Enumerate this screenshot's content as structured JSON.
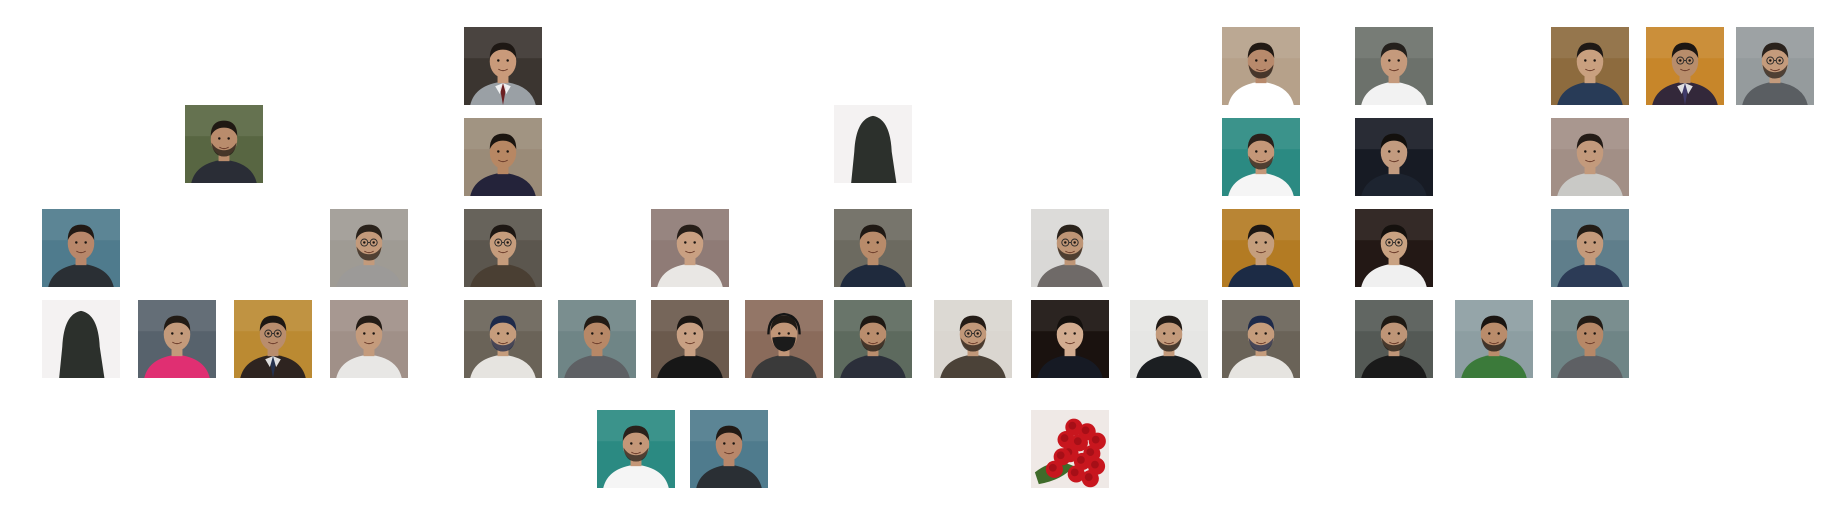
{
  "tiles": [
    {
      "id": "t01",
      "kind": "portrait",
      "bg": "#3b3530",
      "skin": "#c99a7a",
      "hair": "#1e1814",
      "shirt": "#9aa0a5",
      "tie": "#6b1f22",
      "glasses": false,
      "beard": false
    },
    {
      "id": "t02",
      "kind": "portrait",
      "bg": "#b6a18a",
      "skin": "#b88a6c",
      "hair": "#221a14",
      "shirt": "#ffffff",
      "tie": "",
      "glasses": false,
      "beard": true
    },
    {
      "id": "t03",
      "kind": "portrait",
      "bg": "#6c716b",
      "skin": "#c59a7c",
      "hair": "#24201c",
      "shirt": "#f2f2f2",
      "tie": "",
      "glasses": false,
      "beard": false
    },
    {
      "id": "t04",
      "kind": "portrait",
      "bg": "#8d6b3e",
      "skin": "#c9a07f",
      "hair": "#1f1915",
      "shirt": "#283b57",
      "tie": "",
      "glasses": false,
      "beard": false
    },
    {
      "id": "t05",
      "kind": "portrait",
      "bg": "#c7862a",
      "skin": "#b88d6b",
      "hair": "#1d1713",
      "shirt": "#33283a",
      "tie": "#403b6a",
      "glasses": true,
      "beard": false
    },
    {
      "id": "t06",
      "kind": "portrait",
      "bg": "#959b9d",
      "skin": "#c49b7c",
      "hair": "#2a221c",
      "shirt": "#5a5e62",
      "tie": "",
      "glasses": true,
      "beard": true
    },
    {
      "id": "t07",
      "kind": "portrait",
      "bg": "#586642",
      "skin": "#b98c6c",
      "hair": "#201913",
      "shirt": "#2a2d36",
      "tie": "",
      "glasses": false,
      "beard": true
    },
    {
      "id": "t08",
      "kind": "portrait",
      "bg": "#9a8b78",
      "skin": "#b78763",
      "hair": "#1b1510",
      "shirt": "#24233a",
      "tie": "",
      "glasses": false,
      "beard": false
    },
    {
      "id": "t09",
      "kind": "silhouette",
      "bg": "#f4f2f2",
      "shape": "#2c302c"
    },
    {
      "id": "t10",
      "kind": "portrait",
      "bg": "#2b8a82",
      "skin": "#c49778",
      "hair": "#2a211b",
      "shirt": "#f5f5f5",
      "tie": "",
      "glasses": false,
      "beard": true
    },
    {
      "id": "t11",
      "kind": "portrait",
      "bg": "#171b24",
      "skin": "#c29b7f",
      "hair": "#13100d",
      "shirt": "#1d2430",
      "tie": "",
      "glasses": false,
      "beard": false
    },
    {
      "id": "t12",
      "kind": "portrait",
      "bg": "#a28f86",
      "skin": "#c39a7c",
      "hair": "#231b16",
      "shirt": "#c9c9c6",
      "tie": "",
      "glasses": false,
      "beard": false
    },
    {
      "id": "t13",
      "kind": "portrait",
      "bg": "#4f7b8d",
      "skin": "#b8876a",
      "hair": "#221a15",
      "shirt": "#2a2f34",
      "tie": "",
      "glasses": false,
      "beard": false
    },
    {
      "id": "t14",
      "kind": "portrait",
      "bg": "#9f9b94",
      "skin": "#c39a7b",
      "hair": "#2a221b",
      "shirt": "#9c9a98",
      "tie": "",
      "glasses": true,
      "beard": true
    },
    {
      "id": "t15",
      "kind": "portrait",
      "bg": "#5b564e",
      "skin": "#c59c7c",
      "hair": "#1d1713",
      "shirt": "#4a3f33",
      "tie": "",
      "glasses": true,
      "beard": false
    },
    {
      "id": "t16",
      "kind": "portrait",
      "bg": "#8f7b76",
      "skin": "#c9a082",
      "hair": "#261e18",
      "shirt": "#e9e7e4",
      "tie": "",
      "glasses": false,
      "beard": false
    },
    {
      "id": "t17",
      "kind": "portrait",
      "bg": "#6c6a60",
      "skin": "#b88b6a",
      "hair": "#1f1914",
      "shirt": "#1f2a3d",
      "tie": "",
      "glasses": false,
      "beard": false
    },
    {
      "id": "t18",
      "kind": "portrait",
      "bg": "#d9d8d6",
      "skin": "#be9576",
      "hair": "#2a221b",
      "shirt": "#6f6a68",
      "tie": "",
      "glasses": true,
      "beard": true
    },
    {
      "id": "t19",
      "kind": "portrait",
      "bg": "#b37b23",
      "skin": "#c59e7c",
      "hair": "#1d1713",
      "shirt": "#1c2b45",
      "tie": "",
      "glasses": false,
      "beard": false
    },
    {
      "id": "t20",
      "kind": "portrait",
      "bg": "#231815",
      "skin": "#c9a282",
      "hair": "#15110e",
      "shirt": "#f0f0f0",
      "tie": "",
      "glasses": true,
      "beard": false
    },
    {
      "id": "t21",
      "kind": "portrait",
      "bg": "#5f7e8b",
      "skin": "#c49a7b",
      "hair": "#231c16",
      "shirt": "#2c3b56",
      "tie": "",
      "glasses": false,
      "beard": false
    },
    {
      "id": "t22",
      "kind": "silhouette",
      "bg": "#f4f2f2",
      "shape": "#2c302c"
    },
    {
      "id": "t23",
      "kind": "portrait",
      "bg": "#57626c",
      "skin": "#c39a7b",
      "hair": "#221b15",
      "shirt": "#e02f72",
      "tie": "",
      "glasses": false,
      "beard": false
    },
    {
      "id": "t24",
      "kind": "portrait",
      "bg": "#bb8a32",
      "skin": "#b98d6d",
      "hair": "#1e1813",
      "shirt": "#2e2420",
      "tie": "#26324e",
      "glasses": true,
      "beard": false
    },
    {
      "id": "t25",
      "kind": "portrait",
      "bg": "#a09088",
      "skin": "#c49b7c",
      "hair": "#241c16",
      "shirt": "#e8e7e5",
      "tie": "",
      "glasses": false,
      "beard": false
    },
    {
      "id": "t26",
      "kind": "portrait",
      "bg": "#6a6358",
      "skin": "#c59c7c",
      "hair": "#1e2a4a",
      "shirt": "#e6e4e0",
      "tie": "",
      "glasses": false,
      "beard": true
    },
    {
      "id": "t27",
      "kind": "portrait",
      "bg": "#6f8586",
      "skin": "#b78867",
      "hair": "#231b15",
      "shirt": "#5e6064",
      "tie": "",
      "glasses": false,
      "beard": false
    },
    {
      "id": "t28",
      "kind": "portrait",
      "bg": "#6b5a4d",
      "skin": "#c8a083",
      "hair": "#1b1612",
      "shirt": "#171717",
      "tie": "",
      "glasses": false,
      "beard": false
    },
    {
      "id": "t29",
      "kind": "masked",
      "bg": "#8a6b5b",
      "skin": "#c09577",
      "hair": "#201a15",
      "shirt": "#3a3a3a",
      "mask": "#1b1b1b"
    },
    {
      "id": "t30",
      "kind": "portrait",
      "bg": "#5d6a5e",
      "skin": "#b98d6d",
      "hair": "#1e1813",
      "shirt": "#2b2f3a",
      "tie": "",
      "glasses": false,
      "beard": true
    },
    {
      "id": "t31",
      "kind": "portrait",
      "bg": "#dad6d0",
      "skin": "#c19879",
      "hair": "#241c16",
      "shirt": "#4b4238",
      "tie": "",
      "glasses": true,
      "beard": true
    },
    {
      "id": "t32",
      "kind": "portrait",
      "bg": "#1a120f",
      "skin": "#d2ac90",
      "hair": "#14100d",
      "shirt": "#161a24",
      "tie": "",
      "glasses": false,
      "beard": false
    },
    {
      "id": "t33",
      "kind": "portrait",
      "bg": "#e6e6e4",
      "skin": "#c39a7b",
      "hair": "#221b16",
      "shirt": "#1c1f22",
      "tie": "",
      "glasses": false,
      "beard": true
    },
    {
      "id": "t34",
      "kind": "portrait",
      "bg": "#6a6358",
      "skin": "#c59c7c",
      "hair": "#1e2a4a",
      "shirt": "#e6e4e0",
      "tie": "",
      "glasses": false,
      "beard": true
    },
    {
      "id": "t35",
      "kind": "portrait",
      "bg": "#545955",
      "skin": "#be9577",
      "hair": "#1e1913",
      "shirt": "#1a1a1a",
      "tie": "",
      "glasses": false,
      "beard": true
    },
    {
      "id": "t36",
      "kind": "portrait",
      "bg": "#8d9ea2",
      "skin": "#b98c6b",
      "hair": "#1a1511",
      "shirt": "#3b7a3a",
      "tie": "",
      "glasses": false,
      "beard": true
    },
    {
      "id": "t37",
      "kind": "portrait",
      "bg": "#6f8586",
      "skin": "#b78867",
      "hair": "#231b15",
      "shirt": "#5e6064",
      "tie": "",
      "glasses": false,
      "beard": false
    },
    {
      "id": "t38",
      "kind": "portrait",
      "bg": "#2b8a82",
      "skin": "#c49778",
      "hair": "#2a211b",
      "shirt": "#f5f5f5",
      "tie": "",
      "glasses": false,
      "beard": true
    },
    {
      "id": "t39",
      "kind": "portrait",
      "bg": "#4f7b8d",
      "skin": "#b8876a",
      "hair": "#221a15",
      "shirt": "#2a2f34",
      "tie": "",
      "glasses": false,
      "beard": false
    },
    {
      "id": "t40",
      "kind": "roses",
      "bg": "#efe9e6",
      "petal": "#c8161e",
      "leaf": "#3f6b2a"
    }
  ]
}
